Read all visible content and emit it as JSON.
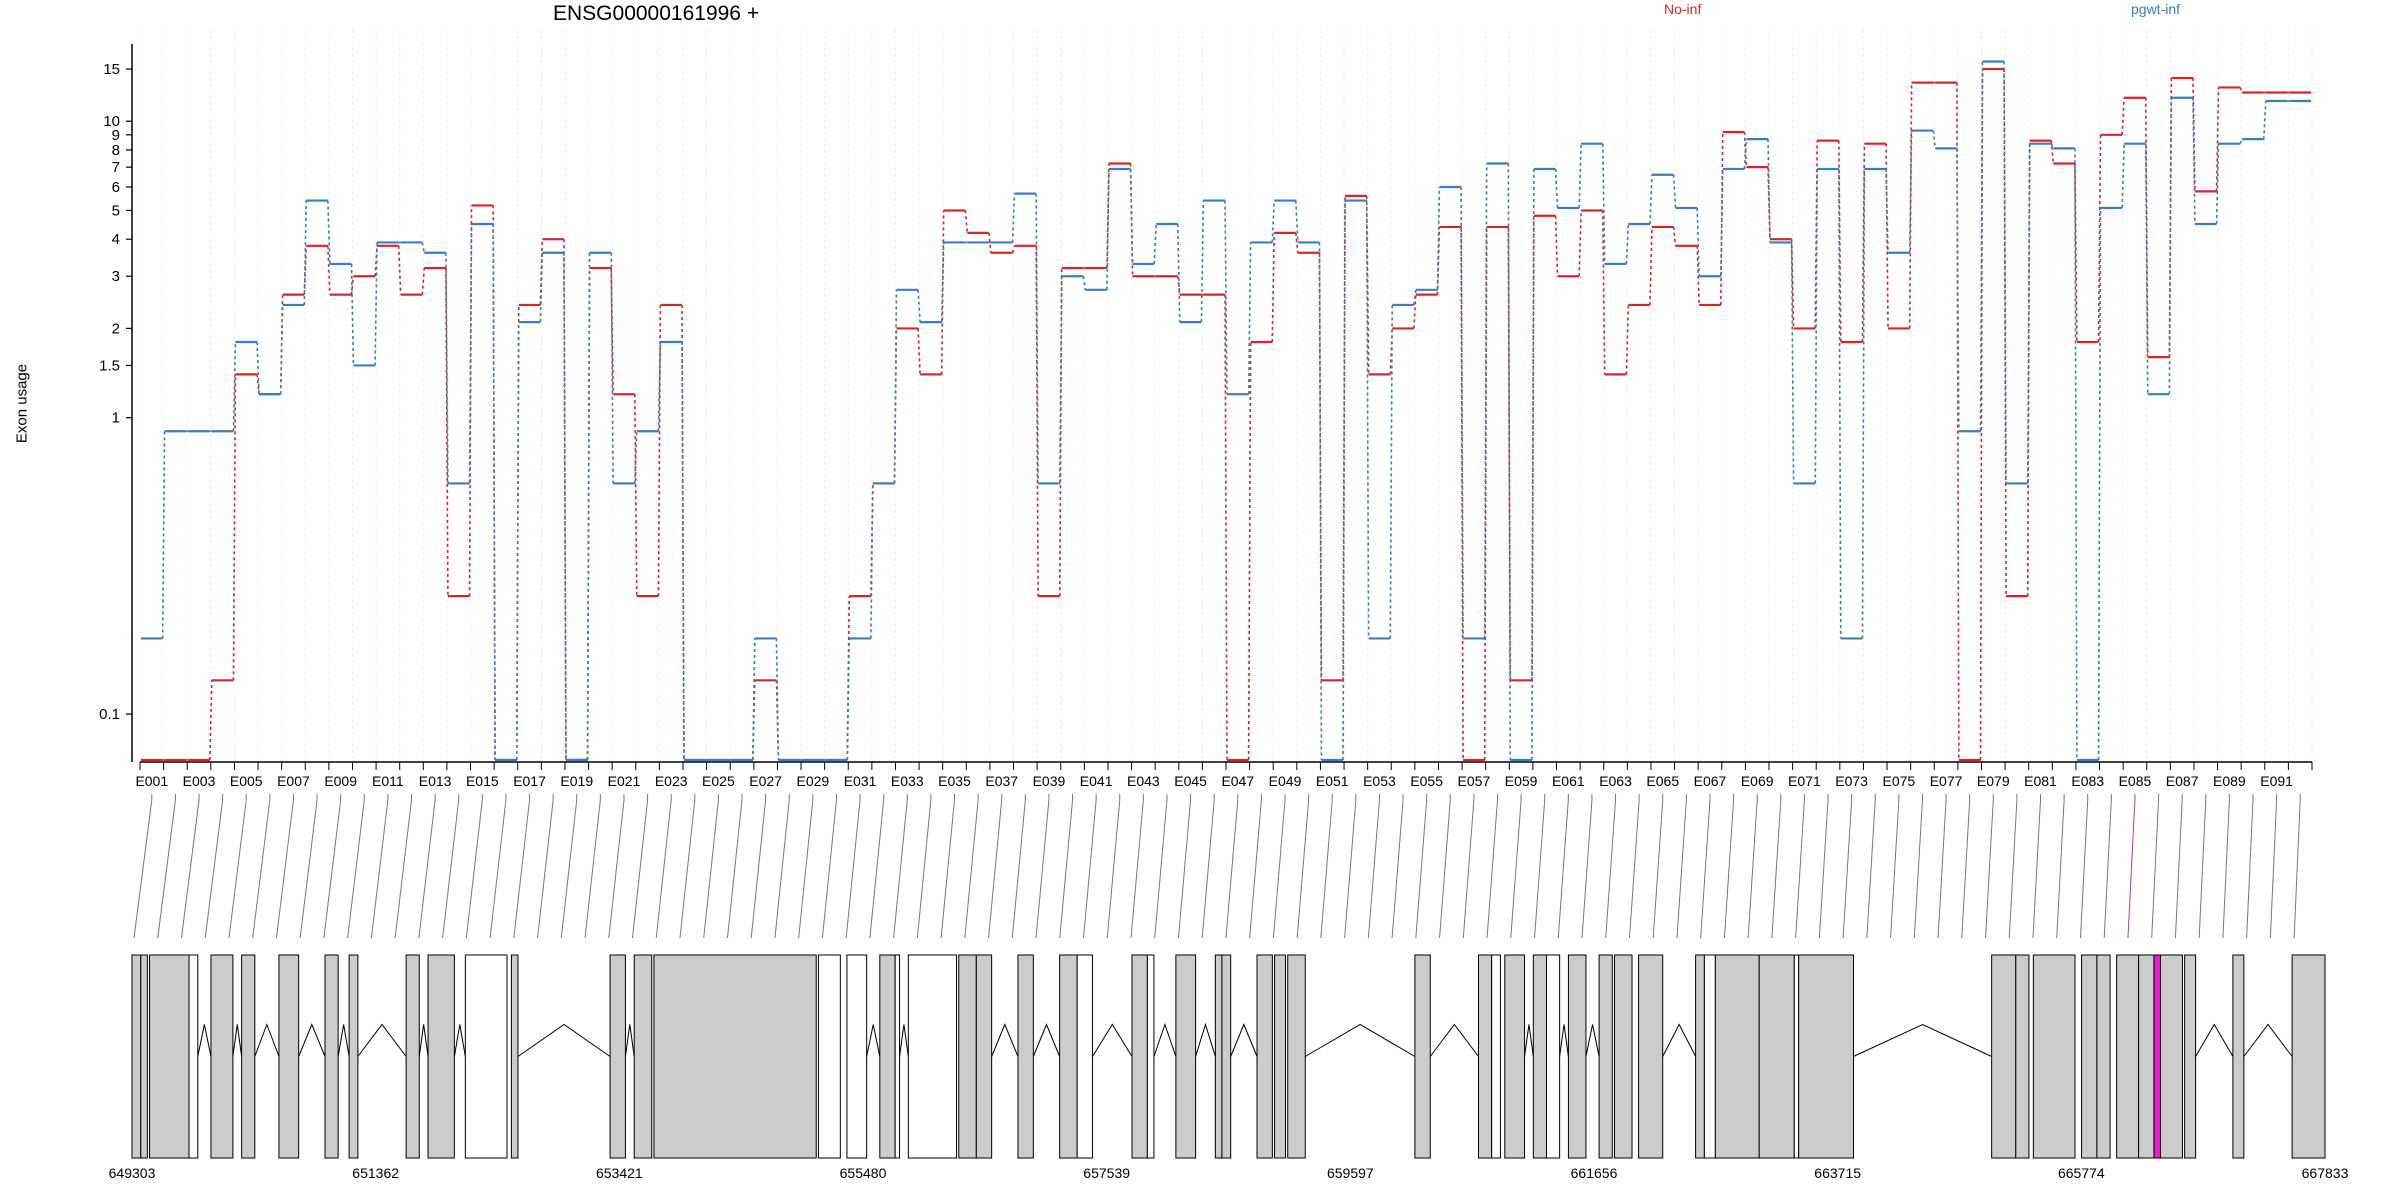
{
  "chart_data": {
    "type": "line",
    "title": "ENSG00000161996 +",
    "ylabel": "Exon usage",
    "y_scale": "log",
    "y_ticks": [
      0.1,
      1,
      1.5,
      2,
      3,
      4,
      5,
      6,
      7,
      8,
      9,
      10,
      15
    ],
    "y_tick_labels": [
      "0.1",
      "1",
      "1.5",
      "2",
      "3",
      "4",
      "5",
      "6",
      "7",
      "8",
      "9",
      "10",
      "15"
    ],
    "ylim": [
      0.07,
      20
    ],
    "categories": [
      "E001",
      "E002",
      "E003",
      "E004",
      "E005",
      "E006",
      "E007",
      "E008",
      "E009",
      "E010",
      "E011",
      "E012",
      "E013",
      "E014",
      "E015",
      "E016",
      "E017",
      "E018",
      "E019",
      "E020",
      "E021",
      "E022",
      "E023",
      "E024",
      "E025",
      "E026",
      "E027",
      "E028",
      "E029",
      "E030",
      "E031",
      "E032",
      "E033",
      "E034",
      "E035",
      "E036",
      "E037",
      "E038",
      "E039",
      "E040",
      "E041",
      "E042",
      "E043",
      "E044",
      "E045",
      "E046",
      "E047",
      "E048",
      "E049",
      "E050",
      "E051",
      "E052",
      "E053",
      "E054",
      "E055",
      "E056",
      "E057",
      "E058",
      "E059",
      "E060",
      "E061",
      "E062",
      "E063",
      "E064",
      "E065",
      "E066",
      "E067",
      "E068",
      "E069",
      "E070",
      "E071",
      "E072",
      "E073",
      "E074",
      "E075",
      "E076",
      "E077",
      "E078",
      "E079",
      "E080",
      "E081",
      "E082",
      "E083",
      "E084",
      "E085",
      "E086",
      "E087",
      "E088",
      "E089",
      "E090",
      "E091",
      "E092"
    ],
    "x_tick_labels": [
      "E001",
      "E003",
      "E005",
      "E007",
      "E009",
      "E011",
      "E013",
      "E015",
      "E017",
      "E019",
      "E021",
      "E023",
      "E025",
      "E027",
      "E029",
      "E031",
      "E033",
      "E035",
      "E037",
      "E039",
      "E041",
      "E043",
      "E045",
      "E047",
      "E049",
      "E051",
      "E053",
      "E055",
      "E057",
      "E059",
      "E061",
      "E063",
      "E065",
      "E067",
      "E069",
      "E071",
      "E073",
      "E075",
      "E077",
      "E079",
      "E081",
      "E083",
      "E085",
      "E087",
      "E089",
      "E091"
    ],
    "series": [
      {
        "name": "No-inf",
        "color": "#d62728",
        "values": [
          0.07,
          0.07,
          0.07,
          0.13,
          1.4,
          1.2,
          2.6,
          3.8,
          2.6,
          3.0,
          3.8,
          2.6,
          3.2,
          0.25,
          5.2,
          0.07,
          2.4,
          4.0,
          0.07,
          3.2,
          1.2,
          0.25,
          2.4,
          0.07,
          0.07,
          0.07,
          0.13,
          0.07,
          0.07,
          0.07,
          0.25,
          0.6,
          2.0,
          1.4,
          5.0,
          4.2,
          3.6,
          3.8,
          0.25,
          3.2,
          3.2,
          7.2,
          3.0,
          3.0,
          2.6,
          2.6,
          0.07,
          1.8,
          4.2,
          3.6,
          0.13,
          5.6,
          1.4,
          2.0,
          2.6,
          4.4,
          0.07,
          4.4,
          0.13,
          4.8,
          3.0,
          5.0,
          1.4,
          2.4,
          4.4,
          3.8,
          2.4,
          9.2,
          7.0,
          4.0,
          2.0,
          8.6,
          1.8,
          8.4,
          2.0,
          13.5,
          13.5,
          0.07,
          15.0,
          0.25,
          8.6,
          7.2,
          1.8,
          9.0,
          12.0,
          1.6,
          14.0,
          5.8,
          13.0,
          12.5,
          12.5,
          12.5
        ]
      },
      {
        "name": "pgwt-inf",
        "color": "#3a7dc0",
        "values": [
          0.18,
          0.9,
          0.9,
          0.9,
          1.8,
          1.2,
          2.4,
          5.4,
          3.3,
          1.5,
          3.9,
          3.9,
          3.6,
          0.6,
          4.5,
          0.07,
          2.1,
          3.6,
          0.07,
          3.6,
          0.6,
          0.9,
          1.8,
          0.07,
          0.07,
          0.07,
          0.18,
          0.07,
          0.07,
          0.07,
          0.18,
          0.6,
          2.7,
          2.1,
          3.9,
          3.9,
          3.9,
          5.7,
          0.6,
          3.0,
          2.7,
          6.9,
          3.3,
          4.5,
          2.1,
          5.4,
          1.2,
          3.9,
          5.4,
          3.9,
          0.07,
          5.4,
          0.18,
          2.4,
          2.7,
          6.0,
          0.18,
          7.2,
          0.07,
          6.9,
          5.1,
          8.4,
          3.3,
          4.5,
          6.6,
          5.1,
          3.0,
          6.9,
          8.7,
          3.9,
          0.6,
          6.9,
          0.18,
          6.9,
          3.6,
          9.3,
          8.1,
          0.9,
          15.9,
          0.6,
          8.4,
          8.1,
          0.07,
          5.1,
          8.4,
          1.2,
          12.0,
          4.5,
          8.4,
          8.7,
          11.7,
          11.7
        ]
      }
    ],
    "gene_model": {
      "coordinate_labels": [
        "649303",
        "651362",
        "653421",
        "655480",
        "657539",
        "659597",
        "661656",
        "663715",
        "665774",
        "667833"
      ],
      "highlight_color": "#e81ed2",
      "exon_fill": "#cccccc"
    },
    "grid": true,
    "legend": "top-right"
  }
}
